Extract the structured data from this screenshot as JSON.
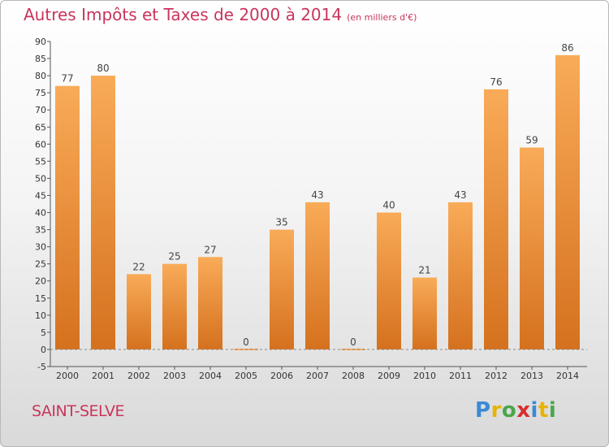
{
  "title": "Autres Impôts et Taxes de 2000 à 2014",
  "unit_note": "(en milliers d'€)",
  "commune": "SAINT-SELVE",
  "logo": {
    "letters": [
      "P",
      "r",
      "o",
      "x",
      "i",
      "t",
      "i"
    ],
    "colors": [
      "#3a8ad4",
      "#e8b400",
      "#4aa64a",
      "#d82e2e",
      "#3a8ad4",
      "#e8b400",
      "#4aa64a"
    ]
  },
  "colors": {
    "accent": "#c8355c",
    "bar_light": "#f9ab58",
    "bar_dark": "#d5711e",
    "axis": "#555555"
  },
  "chart_data": {
    "type": "bar",
    "categories": [
      "2000",
      "2001",
      "2002",
      "2003",
      "2004",
      "2005",
      "2006",
      "2007",
      "2008",
      "2009",
      "2010",
      "2011",
      "2012",
      "2013",
      "2014"
    ],
    "values": [
      77,
      80,
      22,
      25,
      27,
      0,
      35,
      43,
      0,
      40,
      21,
      43,
      76,
      59,
      86
    ],
    "title": "Autres Impôts et Taxes de 2000 à 2014",
    "xlabel": "",
    "ylabel": "",
    "ylim": [
      -5,
      90
    ],
    "yticks": [
      -5,
      0,
      5,
      10,
      15,
      20,
      25,
      30,
      35,
      40,
      45,
      50,
      55,
      60,
      65,
      70,
      75,
      80,
      85,
      90
    ],
    "grid": false,
    "data_labels": true
  }
}
